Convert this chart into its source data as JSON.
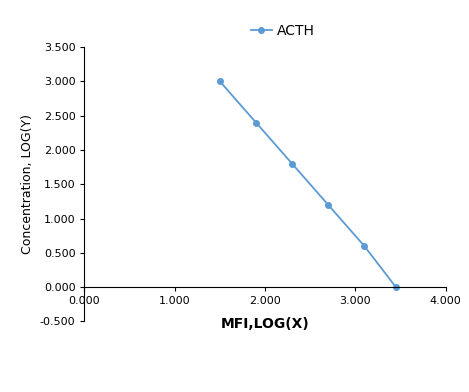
{
  "x": [
    1.5,
    1.9,
    2.3,
    2.7,
    3.1,
    3.45
  ],
  "y": [
    3.0,
    2.4,
    1.8,
    1.2,
    0.6,
    0.0
  ],
  "line_color": "#5B9BD5",
  "marker_style": "o",
  "marker_size": 4,
  "line_width": 1.3,
  "legend_label": "ACTH",
  "xlabel": "MFI,LOG(X)",
  "ylabel": "Concentration, LOG(Y)",
  "xlim": [
    0.0,
    4.0
  ],
  "ylim": [
    -0.5,
    3.5
  ],
  "xticks": [
    0.0,
    1.0,
    2.0,
    3.0,
    4.0
  ],
  "yticks": [
    -0.5,
    0.0,
    0.5,
    1.0,
    1.5,
    2.0,
    2.5,
    3.0,
    3.5
  ],
  "xlabel_fontsize": 10,
  "ylabel_fontsize": 9,
  "tick_fontsize": 8,
  "legend_fontsize": 10,
  "background_color": "#ffffff"
}
